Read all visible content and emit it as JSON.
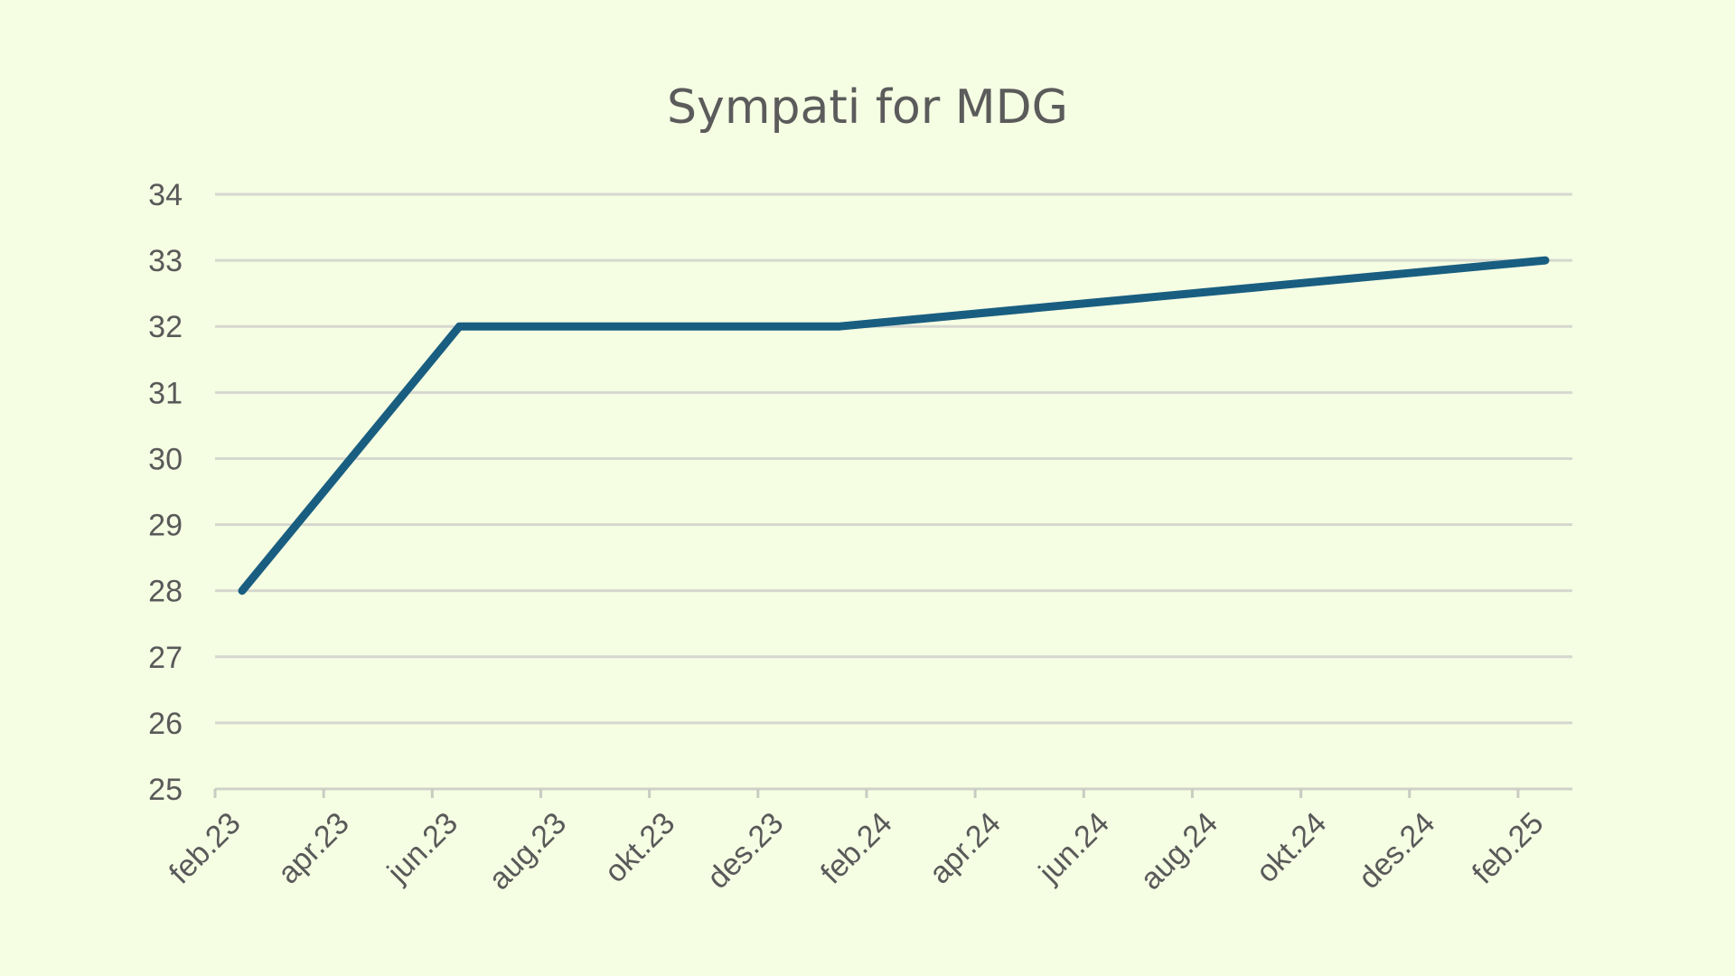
{
  "chart_data": {
    "type": "line",
    "title": "Sympati for MDG",
    "xlabel": "",
    "ylabel": "",
    "grid": true,
    "legend": "none",
    "ylim": [
      25,
      34
    ],
    "yticks": [
      "25",
      "26",
      "27",
      "28",
      "29",
      "30",
      "31",
      "32",
      "33",
      "34"
    ],
    "xticks": [
      "feb.23",
      "apr.23",
      "jun.23",
      "aug.23",
      "okt.23",
      "des.23",
      "feb.24",
      "apr.24",
      "jun.24",
      "aug.24",
      "okt.24",
      "des.24",
      "feb.25"
    ],
    "series": [
      {
        "color": "#195e80",
        "points": [
          {
            "x": "2023-02",
            "y": 28
          },
          {
            "x": "2023-06",
            "y": 32
          },
          {
            "x": "2024-01",
            "y": 32
          },
          {
            "x": "2025-02",
            "y": 33
          }
        ]
      }
    ]
  }
}
